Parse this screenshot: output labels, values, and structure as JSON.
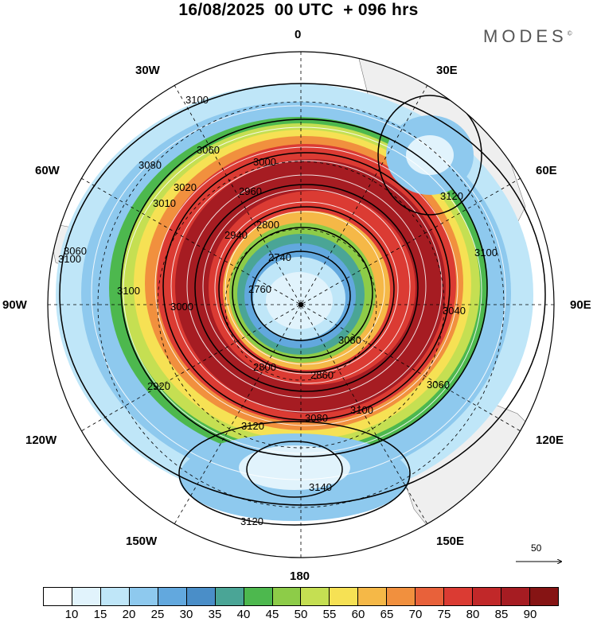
{
  "title": "16/08/2025  00 UTC  + 096 hrs",
  "brand": "MODES",
  "brand_mark": "©",
  "map": {
    "projection": "polar-stereographic-south",
    "field": "wind speed at pressure level with geopotential height contours",
    "longitude_labels": [
      "0",
      "30E",
      "60E",
      "90E",
      "120E",
      "150E",
      "180",
      "150W",
      "120W",
      "90W",
      "60W",
      "30W"
    ],
    "contour_labels": [
      "3100",
      "3060",
      "3080",
      "3000",
      "2960",
      "3010",
      "3020",
      "2940",
      "2800",
      "2740",
      "2760",
      "3120",
      "3100",
      "3040",
      "3060",
      "3080",
      "2860",
      "2800",
      "2920",
      "3100",
      "3080",
      "3100",
      "3120",
      "3140",
      "3120",
      "3100",
      "3060",
      "3000"
    ],
    "scale_vector_value": "50"
  },
  "colorbar": {
    "ticks": [
      "10",
      "15",
      "20",
      "25",
      "30",
      "35",
      "40",
      "45",
      "50",
      "55",
      "60",
      "65",
      "70",
      "75",
      "80",
      "85",
      "90"
    ],
    "colors": [
      "#ffffff",
      "#e1f3fc",
      "#bfe6f8",
      "#8ec9ee",
      "#62a8de",
      "#4a8ec8",
      "#4aa596",
      "#4db84e",
      "#8dcc48",
      "#c5df52",
      "#f6e154",
      "#f5b847",
      "#f1903e",
      "#e8613a",
      "#db3b33",
      "#c12829",
      "#a61c22",
      "#861414"
    ]
  }
}
